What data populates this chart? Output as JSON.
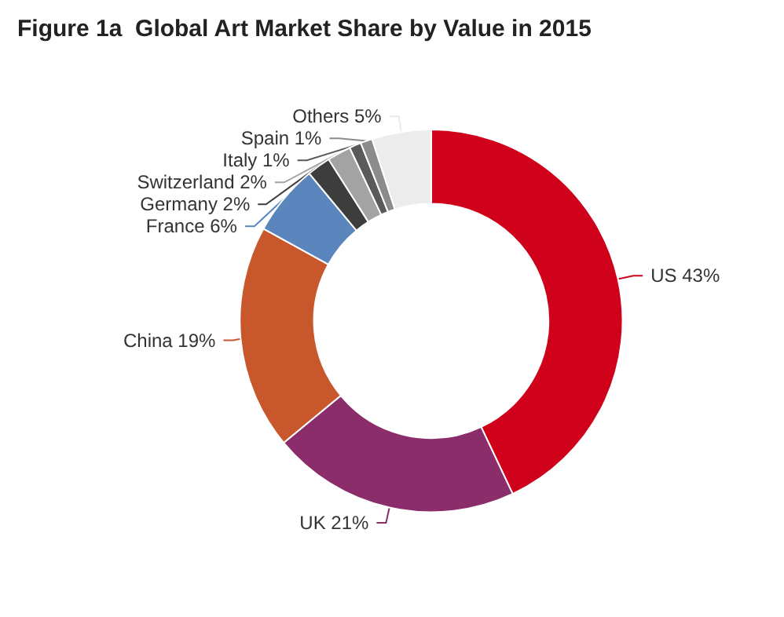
{
  "chart_data": {
    "type": "donut",
    "title": "Figure 1a  Global Art Market Share by Value in 2015",
    "categories": [
      "US",
      "UK",
      "China",
      "France",
      "Germany",
      "Switzerland",
      "Italy",
      "Spain",
      "Others"
    ],
    "values": [
      43,
      21,
      19,
      6,
      2,
      2,
      1,
      1,
      5
    ],
    "value_labels": [
      "43%",
      "21%",
      "19%",
      "6%",
      "2%",
      "2%",
      "1%",
      "1%",
      "5%"
    ],
    "colors": [
      "#d0021b",
      "#8b2d6b",
      "#c8582c",
      "#5b86bd",
      "#3d3d3d",
      "#a3a3a3",
      "#5a5a5a",
      "#8c8c8c",
      "#ececec"
    ],
    "legend": false
  }
}
